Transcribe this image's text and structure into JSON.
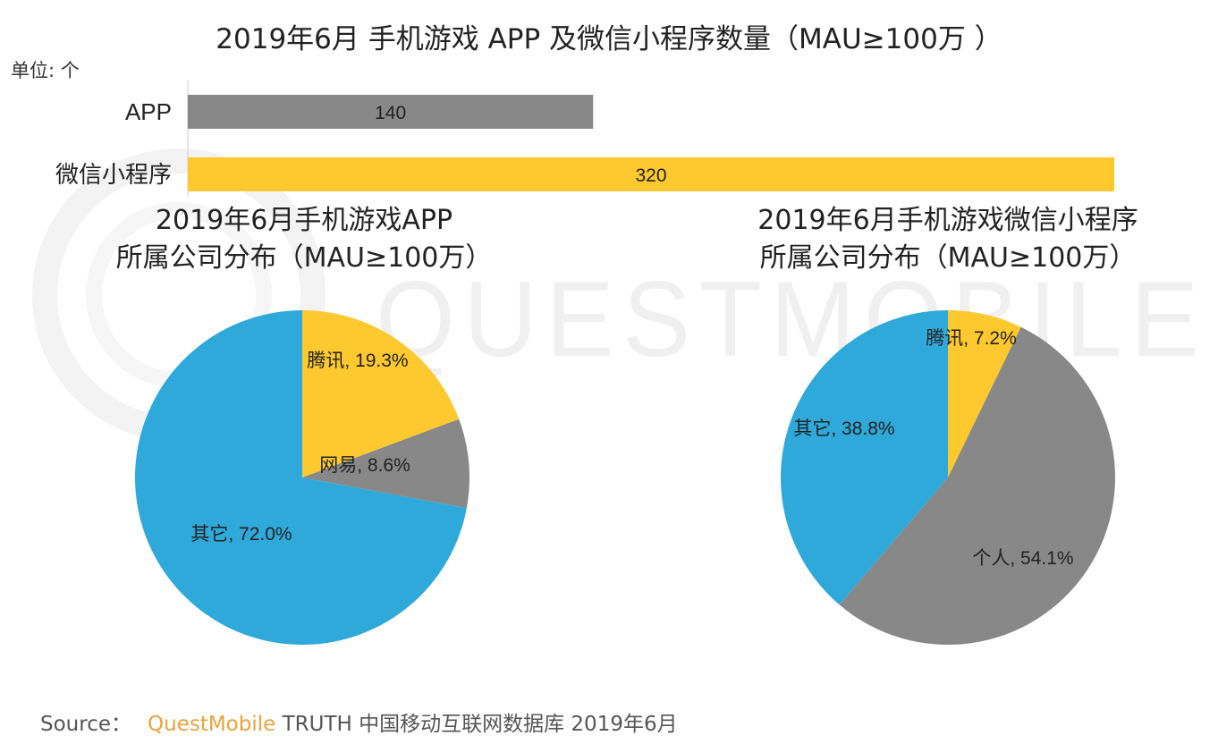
{
  "title": "2019年6月 手机游戏 APP 及微信小程序数量（MAU≥100万 ）",
  "unit": "单位: 个",
  "watermark": "QUESTMOBILE",
  "colors": {
    "gray": "#888888",
    "yellow": "#fdc92e",
    "blue": "#2fa8da"
  },
  "chart_data": [
    {
      "type": "bar",
      "orientation": "horizontal",
      "categories": [
        "APP",
        "微信小程序"
      ],
      "values": [
        140,
        320
      ],
      "value_labels": [
        "140",
        "320"
      ],
      "colors": [
        "#888888",
        "#fdc92e"
      ],
      "xlim": [
        0,
        320
      ]
    },
    {
      "type": "pie",
      "title_line1": "2019年6月手机游戏APP",
      "title_line2": "所属公司分布（MAU≥100万）",
      "slices": [
        {
          "label": "腾讯",
          "value": 19.3,
          "text": "腾讯, 19.3%",
          "color": "#fdc92e"
        },
        {
          "label": "网易",
          "value": 8.6,
          "text": "网易, 8.6%",
          "color": "#888888"
        },
        {
          "label": "其它",
          "value": 72.0,
          "text": "其它, 72.0%",
          "color": "#2fa8da"
        }
      ]
    },
    {
      "type": "pie",
      "title_line1": "2019年6月手机游戏微信小程序",
      "title_line2": "所属公司分布（MAU≥100万）",
      "slices": [
        {
          "label": "腾讯",
          "value": 7.2,
          "text": "腾讯, 7.2%",
          "color": "#fdc92e"
        },
        {
          "label": "个人",
          "value": 54.1,
          "text": "个人, 54.1%",
          "color": "#888888"
        },
        {
          "label": "其它",
          "value": 38.8,
          "text": "其它, 38.8%",
          "color": "#2fa8da"
        }
      ]
    }
  ],
  "footer": {
    "prefix": "Source：",
    "brand": "QuestMobile",
    "text": "TRUTH 中国移动互联网数据库 2019年6月"
  }
}
